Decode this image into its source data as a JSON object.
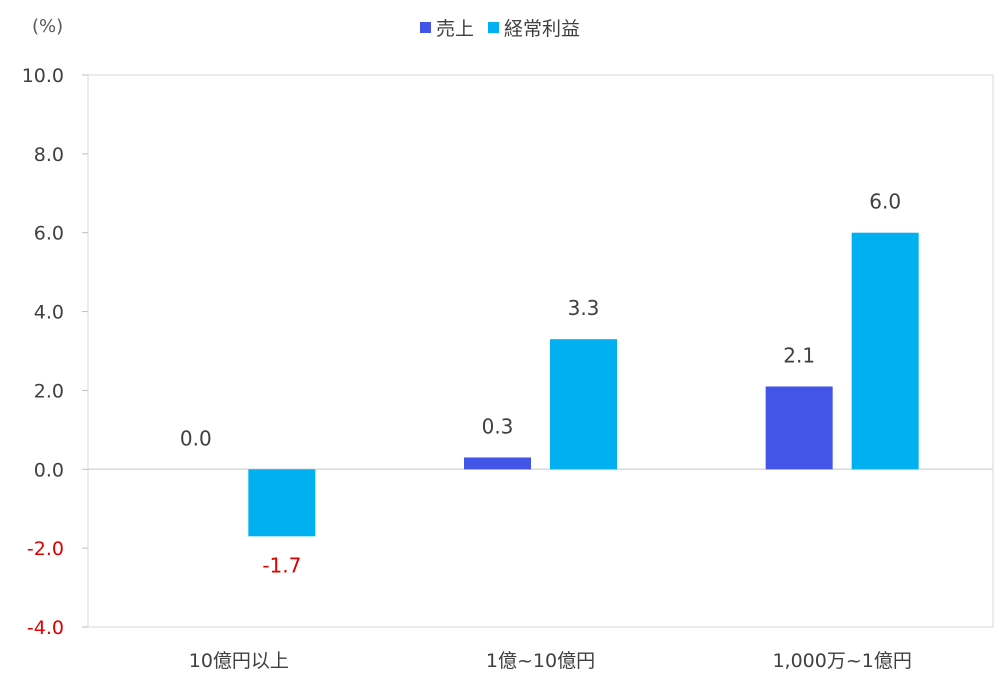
{
  "chart_data": {
    "type": "bar",
    "unit_label": "(%)",
    "categories": [
      "10億円以上",
      "1億~10億円",
      "1,000万~1億円"
    ],
    "series": [
      {
        "name": "売上",
        "color": "#4355e6",
        "values": [
          0.0,
          0.3,
          2.1
        ],
        "labels": [
          "0.0",
          "0.3",
          "2.1"
        ]
      },
      {
        "name": "経常利益",
        "color": "#00b0f0",
        "values": [
          -1.7,
          3.3,
          6.0
        ],
        "labels": [
          "-1.7",
          "3.3",
          "6.0"
        ]
      }
    ],
    "ylim": [
      -4.0,
      10.0
    ],
    "yticks": [
      "-4.0",
      "-2.0",
      "0.0",
      "2.0",
      "4.0",
      "6.0",
      "8.0",
      "10.0"
    ],
    "negative_color": "#e00000",
    "legend_position": "top-center",
    "grid": false
  }
}
